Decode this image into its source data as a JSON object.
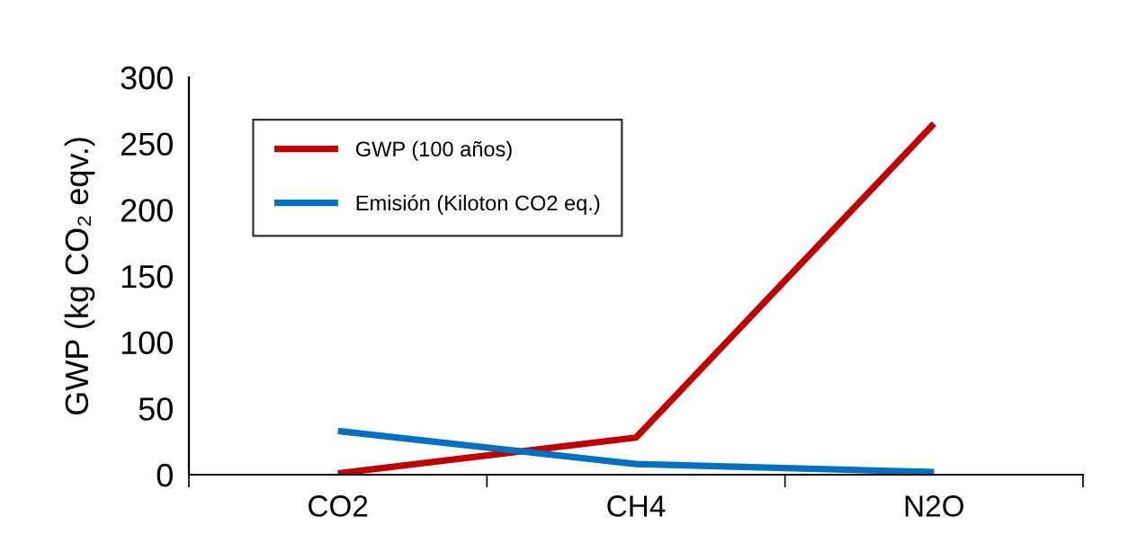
{
  "chart_data": {
    "type": "line",
    "ylabel": "GWP (kg CO₂ eqv.)",
    "categories": [
      "CO2",
      "CH4",
      "N2O"
    ],
    "series": [
      {
        "name": "GWP (100 años)",
        "color": "#c00000",
        "values": [
          1,
          28,
          265
        ]
      },
      {
        "name": "Emisión (Kiloton CO2 eq.)",
        "color": "#0070c0",
        "values": [
          33,
          8,
          2
        ]
      }
    ],
    "ylim": [
      0,
      300
    ],
    "yticks": [
      0,
      50,
      100,
      150,
      200,
      250,
      300
    ],
    "grid": false,
    "legend": "top left",
    "marker": "none",
    "line_style": "solid"
  }
}
